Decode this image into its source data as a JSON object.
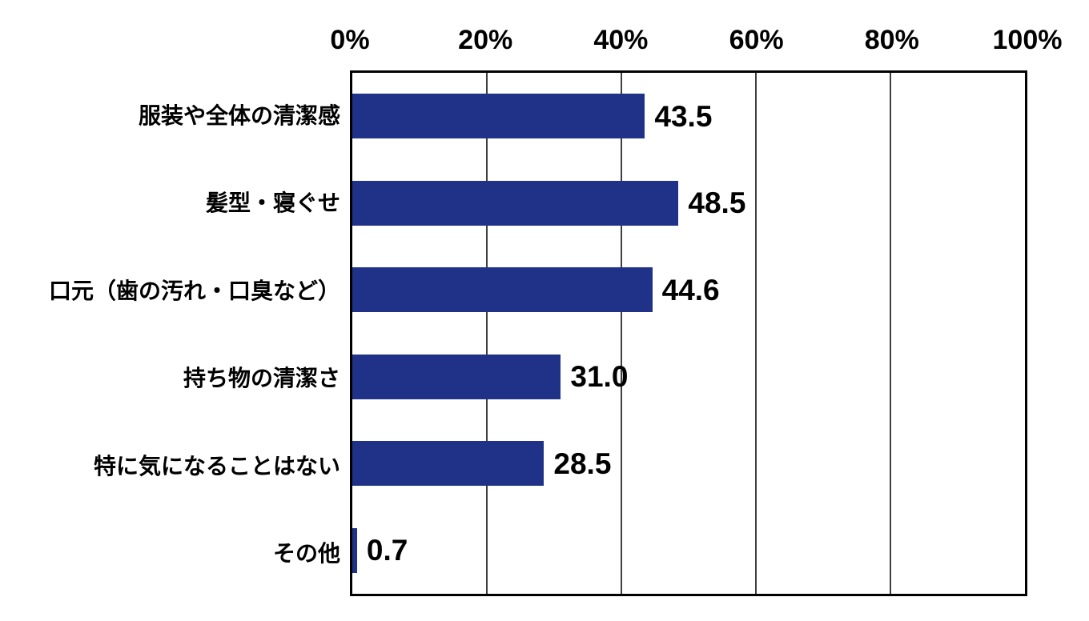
{
  "chart_data": {
    "type": "bar",
    "orientation": "horizontal",
    "title": "",
    "categories": [
      "服装や全体の清潔感",
      "髪型・寝ぐせ",
      "口元（歯の汚れ・口臭など）",
      "持ち物の清潔さ",
      "特に気になることはない",
      "その他"
    ],
    "values": [
      43.5,
      48.5,
      44.6,
      31.0,
      28.5,
      0.7
    ],
    "data_labels": [
      "43.5",
      "48.5",
      "44.6",
      "31.0",
      "28.5",
      "0.7"
    ],
    "x_axis": {
      "position": "top",
      "ticks": [
        "0%",
        "20%",
        "40%",
        "60%",
        "80%",
        "100%"
      ],
      "tick_values": [
        0,
        20,
        40,
        60,
        80,
        100
      ],
      "min": 0,
      "max": 100
    },
    "grid": {
      "show": true,
      "lines_at": [
        20,
        40,
        60,
        80
      ]
    },
    "legend": "none",
    "colors": {
      "bar": "#1F3287",
      "grid_line": "#3F3F3F",
      "border": "#000000",
      "text": "#000000",
      "background": "#FFFFFF"
    }
  }
}
